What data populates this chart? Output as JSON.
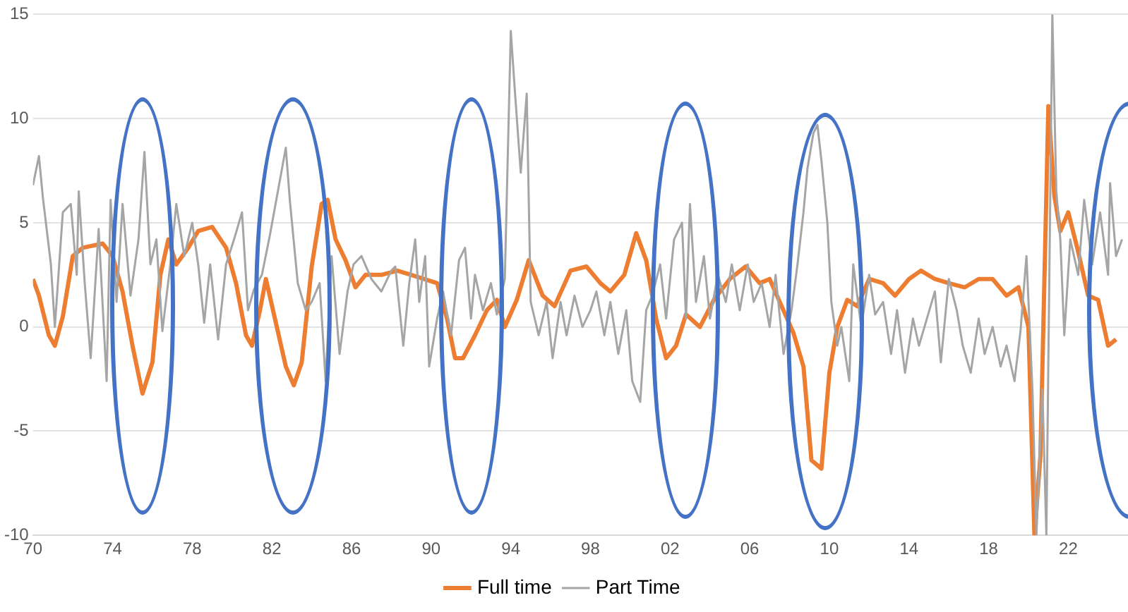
{
  "chart_data": {
    "type": "line",
    "xlim": [
      1970,
      2025
    ],
    "xticks": [
      {
        "value": 1970,
        "label": "70"
      },
      {
        "value": 1974,
        "label": "74"
      },
      {
        "value": 1978,
        "label": "78"
      },
      {
        "value": 1982,
        "label": "82"
      },
      {
        "value": 1986,
        "label": "86"
      },
      {
        "value": 1990,
        "label": "90"
      },
      {
        "value": 1994,
        "label": "94"
      },
      {
        "value": 1998,
        "label": "98"
      },
      {
        "value": 2002,
        "label": "02"
      },
      {
        "value": 2006,
        "label": "06"
      },
      {
        "value": 2010,
        "label": "10"
      },
      {
        "value": 2014,
        "label": "14"
      },
      {
        "value": 2018,
        "label": "18"
      },
      {
        "value": 2022,
        "label": "22"
      }
    ],
    "ylim": [
      -10,
      15
    ],
    "yticks": [
      -10,
      -5,
      0,
      5,
      10,
      15
    ],
    "grid": "y",
    "legend": "bottom",
    "marker": "none",
    "line_style": "solid",
    "series": [
      {
        "name": "Full time",
        "color": "#ed7d31",
        "x": [
          1970.0,
          1970.3,
          1970.8,
          1971.1,
          1971.5,
          1972.0,
          1972.5,
          1973.5,
          1974.0,
          1974.5,
          1975.0,
          1975.5,
          1976.0,
          1976.4,
          1976.8,
          1977.2,
          1977.8,
          1978.3,
          1979.0,
          1979.7,
          1980.2,
          1980.7,
          1981.0,
          1981.4,
          1981.7,
          1982.2,
          1982.7,
          1983.1,
          1983.5,
          1984.0,
          1984.5,
          1984.8,
          1985.2,
          1985.7,
          1986.2,
          1986.7,
          1987.5,
          1988.3,
          1989.0,
          1990.3,
          1990.8,
          1991.2,
          1991.6,
          1992.2,
          1992.8,
          1993.3,
          1993.7,
          1994.3,
          1994.9,
          1995.6,
          1996.2,
          1997.0,
          1997.8,
          1998.5,
          1999.0,
          1999.7,
          2000.3,
          2000.8,
          2001.3,
          2001.8,
          2002.3,
          2002.8,
          2003.5,
          2004.2,
          2005.0,
          2005.8,
          2006.5,
          2007.0,
          2007.6,
          2008.2,
          2008.7,
          2009.1,
          2009.6,
          2010.0,
          2010.4,
          2010.9,
          2011.4,
          2012.0,
          2012.7,
          2013.3,
          2014.0,
          2014.6,
          2015.3,
          2016.0,
          2016.8,
          2017.5,
          2018.2,
          2018.9,
          2019.5,
          2020.0,
          2020.3,
          2020.6,
          2021.0,
          2021.3,
          2021.6,
          2022.0,
          2022.5,
          2023.0,
          2023.5,
          2024.0,
          2024.4
        ],
        "values": [
          2.3,
          1.5,
          -0.4,
          -0.9,
          0.5,
          3.4,
          3.8,
          4.0,
          3.4,
          1.7,
          -0.9,
          -3.2,
          -1.7,
          2.5,
          4.2,
          3.0,
          3.8,
          4.6,
          4.8,
          3.8,
          2.1,
          -0.4,
          -0.9,
          0.8,
          2.3,
          0.2,
          -1.9,
          -2.8,
          -1.7,
          2.9,
          5.9,
          6.1,
          4.2,
          3.2,
          1.9,
          2.5,
          2.5,
          2.7,
          2.5,
          2.1,
          0.4,
          -1.5,
          -1.5,
          -0.4,
          0.8,
          1.3,
          0.0,
          1.3,
          3.2,
          1.5,
          1.0,
          2.7,
          2.9,
          2.1,
          1.7,
          2.5,
          4.5,
          3.2,
          0.4,
          -1.5,
          -0.9,
          0.6,
          0.0,
          1.3,
          2.3,
          2.9,
          2.1,
          2.3,
          1.0,
          -0.3,
          -1.9,
          -6.4,
          -6.8,
          -2.2,
          0.0,
          1.3,
          1.0,
          2.3,
          2.1,
          1.5,
          2.3,
          2.7,
          2.3,
          2.1,
          1.9,
          2.3,
          2.3,
          1.5,
          1.9,
          0.0,
          -10.0,
          -6.2,
          10.6,
          6.3,
          4.6,
          5.5,
          3.6,
          1.5,
          1.3,
          -0.9,
          -0.6
        ]
      },
      {
        "name": "Part Time",
        "color": "#a5a5a5",
        "x": [
          1970.0,
          1970.3,
          1970.5,
          1970.9,
          1971.1,
          1971.5,
          1971.9,
          1972.2,
          1972.3,
          1972.6,
          1972.9,
          1973.3,
          1973.7,
          1973.9,
          1974.2,
          1974.5,
          1974.9,
          1975.3,
          1975.6,
          1975.9,
          1976.2,
          1976.5,
          1976.9,
          1977.2,
          1977.6,
          1978.0,
          1978.3,
          1978.6,
          1978.9,
          1979.3,
          1979.7,
          1980.1,
          1980.5,
          1980.8,
          1981.1,
          1981.5,
          1981.9,
          1982.3,
          1982.7,
          1982.9,
          1983.3,
          1983.7,
          1984.0,
          1984.4,
          1984.7,
          1985.0,
          1985.4,
          1985.8,
          1986.1,
          1986.5,
          1987.0,
          1987.5,
          1988.0,
          1988.2,
          1988.6,
          1988.9,
          1989.2,
          1989.4,
          1989.7,
          1989.9,
          1990.3,
          1990.6,
          1991.0,
          1991.4,
          1991.7,
          1992.0,
          1992.2,
          1992.6,
          1993.0,
          1993.3,
          1993.7,
          1994.0,
          1994.2,
          1994.5,
          1994.8,
          1995.0,
          1995.4,
          1995.8,
          1996.1,
          1996.5,
          1996.8,
          1997.2,
          1997.6,
          1998.0,
          1998.3,
          1998.7,
          1999.0,
          1999.4,
          1999.8,
          2000.1,
          2000.5,
          2000.8,
          2001.1,
          2001.5,
          2001.8,
          2002.2,
          2002.6,
          2002.8,
          2003.0,
          2003.3,
          2003.7,
          2004.0,
          2004.4,
          2004.8,
          2005.1,
          2005.5,
          2005.9,
          2006.2,
          2006.6,
          2007.0,
          2007.3,
          2007.7,
          2008.1,
          2008.4,
          2008.7,
          2008.9,
          2009.2,
          2009.4,
          2009.6,
          2009.9,
          2010.1,
          2010.4,
          2010.6,
          2011.0,
          2011.2,
          2011.6,
          2012.0,
          2012.3,
          2012.7,
          2013.1,
          2013.4,
          2013.8,
          2014.2,
          2014.5,
          2014.9,
          2015.3,
          2015.6,
          2016.0,
          2016.4,
          2016.7,
          2017.1,
          2017.5,
          2017.8,
          2018.2,
          2018.6,
          2018.9,
          2019.3,
          2019.6,
          2019.9,
          2020.2,
          2020.4,
          2020.7,
          2020.9,
          2021.2,
          2021.4,
          2021.6,
          2021.8,
          2022.1,
          2022.5,
          2022.8,
          2023.2,
          2023.6,
          2024.0,
          2024.1,
          2024.4,
          2024.7
        ],
        "values": [
          6.8,
          8.2,
          6.2,
          3.0,
          0.0,
          5.5,
          5.9,
          2.5,
          6.5,
          2.1,
          -1.5,
          4.7,
          -2.6,
          6.1,
          1.2,
          5.9,
          1.5,
          4.2,
          8.4,
          3.0,
          4.2,
          -0.2,
          3.0,
          5.9,
          3.4,
          5.0,
          3.0,
          0.2,
          3.0,
          -0.6,
          3.0,
          4.2,
          5.5,
          0.8,
          1.8,
          2.5,
          4.4,
          6.5,
          8.6,
          6.1,
          2.1,
          0.8,
          1.2,
          2.1,
          -2.6,
          3.4,
          -1.3,
          1.7,
          3.0,
          3.4,
          2.3,
          1.7,
          2.7,
          2.9,
          -0.9,
          2.1,
          4.2,
          1.2,
          3.4,
          -1.9,
          0.4,
          1.7,
          -0.4,
          3.2,
          3.8,
          0.4,
          2.5,
          0.8,
          2.1,
          0.6,
          2.3,
          14.2,
          11.4,
          7.4,
          11.2,
          1.2,
          -0.4,
          1.2,
          -1.5,
          1.2,
          -0.4,
          1.5,
          0.0,
          0.8,
          1.7,
          -0.4,
          1.2,
          -1.3,
          0.8,
          -2.6,
          -3.6,
          0.8,
          1.5,
          3.0,
          0.4,
          4.2,
          5.0,
          0.4,
          5.9,
          1.2,
          3.4,
          0.4,
          2.5,
          1.2,
          3.0,
          0.8,
          3.0,
          1.2,
          2.1,
          0.0,
          2.5,
          -1.3,
          0.8,
          3.0,
          5.5,
          7.6,
          9.3,
          9.7,
          8.0,
          5.0,
          1.2,
          -0.9,
          0.0,
          -2.6,
          3.0,
          0.0,
          2.5,
          0.6,
          1.2,
          -1.3,
          0.8,
          -2.2,
          0.4,
          -0.9,
          0.4,
          1.7,
          -1.7,
          2.3,
          0.8,
          -0.9,
          -2.2,
          0.4,
          -1.3,
          0.0,
          -1.9,
          -0.9,
          -2.6,
          -0.2,
          3.4,
          -3.0,
          -10.0,
          -3.0,
          -10.0,
          15.0,
          6.5,
          4.2,
          -0.4,
          4.2,
          2.5,
          6.1,
          3.0,
          5.5,
          2.5,
          6.9,
          3.4,
          4.2
        ]
      }
    ]
  }
}
